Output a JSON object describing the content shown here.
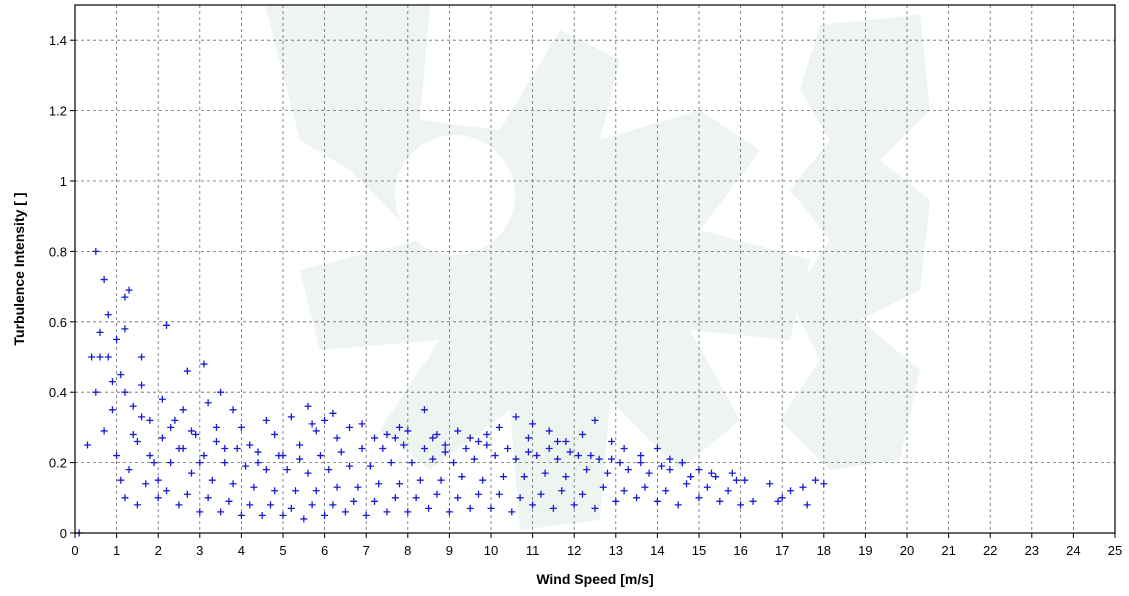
{
  "chart_data": {
    "type": "scatter",
    "xlabel": "Wind Speed [m/s]",
    "ylabel": "Turbulence Intensity [ ]",
    "xlim": [
      0,
      25
    ],
    "ylim": [
      0,
      1.5
    ],
    "x_ticks": [
      0,
      1,
      2,
      3,
      4,
      5,
      6,
      7,
      8,
      9,
      10,
      11,
      12,
      13,
      14,
      15,
      16,
      17,
      18,
      19,
      20,
      21,
      22,
      23,
      24,
      25
    ],
    "y_ticks": [
      0,
      0.2,
      0.4,
      0.6,
      0.8,
      1,
      1.2,
      1.4
    ],
    "y_tick_labels": [
      "0",
      "0.2",
      "0.4",
      "0.6",
      "0.8",
      "1",
      "1.2",
      "1.4"
    ],
    "grid": true,
    "marker": "+",
    "colors": {
      "marker": "#1a1ad6",
      "watermark": "#eef4ef"
    },
    "series": [
      {
        "points": [
          [
            0.4,
            0.5
          ],
          [
            0.5,
            0.8
          ],
          [
            0.6,
            0.5
          ],
          [
            0.7,
            0.72
          ],
          [
            0.8,
            0.5
          ],
          [
            0.8,
            0.62
          ],
          [
            1.0,
            0.55
          ],
          [
            1.2,
            0.58
          ],
          [
            1.2,
            0.67
          ],
          [
            1.3,
            0.69
          ],
          [
            0.3,
            0.25
          ],
          [
            0.5,
            0.4
          ],
          [
            0.7,
            0.29
          ],
          [
            0.9,
            0.43
          ],
          [
            1.1,
            0.45
          ],
          [
            1.6,
            0.5
          ],
          [
            2.2,
            0.59
          ],
          [
            2.7,
            0.46
          ],
          [
            3.1,
            0.48
          ],
          [
            3.5,
            0.4
          ],
          [
            0.6,
            0.57
          ],
          [
            0.9,
            0.35
          ],
          [
            1.0,
            0.22
          ],
          [
            1.1,
            0.15
          ],
          [
            1.2,
            0.4
          ],
          [
            1.4,
            0.36
          ],
          [
            1.5,
            0.26
          ],
          [
            1.6,
            0.42
          ],
          [
            1.8,
            0.32
          ],
          [
            1.9,
            0.2
          ],
          [
            2.0,
            0.15
          ],
          [
            2.1,
            0.38
          ],
          [
            2.3,
            0.3
          ],
          [
            2.5,
            0.24
          ],
          [
            2.6,
            0.35
          ],
          [
            2.8,
            0.29
          ],
          [
            3.0,
            0.2
          ],
          [
            3.2,
            0.37
          ],
          [
            3.4,
            0.3
          ],
          [
            3.6,
            0.24
          ],
          [
            3.8,
            0.35
          ],
          [
            4.0,
            0.3
          ],
          [
            4.2,
            0.25
          ],
          [
            4.4,
            0.2
          ],
          [
            4.6,
            0.32
          ],
          [
            4.8,
            0.28
          ],
          [
            5.0,
            0.22
          ],
          [
            5.2,
            0.33
          ],
          [
            5.4,
            0.25
          ],
          [
            5.6,
            0.36
          ],
          [
            5.8,
            0.29
          ],
          [
            6.0,
            0.32
          ],
          [
            6.3,
            0.27
          ],
          [
            6.6,
            0.3
          ],
          [
            6.9,
            0.31
          ],
          [
            7.2,
            0.27
          ],
          [
            7.5,
            0.28
          ],
          [
            7.8,
            0.3
          ],
          [
            8.0,
            0.29
          ],
          [
            8.4,
            0.35
          ],
          [
            8.6,
            0.27
          ],
          [
            8.9,
            0.25
          ],
          [
            9.2,
            0.29
          ],
          [
            9.5,
            0.27
          ],
          [
            9.9,
            0.28
          ],
          [
            10.2,
            0.3
          ],
          [
            10.6,
            0.33
          ],
          [
            11.0,
            0.31
          ],
          [
            11.4,
            0.29
          ],
          [
            11.8,
            0.26
          ],
          [
            12.2,
            0.28
          ],
          [
            12.5,
            0.32
          ],
          [
            12.9,
            0.26
          ],
          [
            13.2,
            0.24
          ],
          [
            13.6,
            0.22
          ],
          [
            14.0,
            0.24
          ],
          [
            14.3,
            0.21
          ],
          [
            14.6,
            0.2
          ],
          [
            15.0,
            0.18
          ],
          [
            15.4,
            0.16
          ],
          [
            15.8,
            0.17
          ],
          [
            16.1,
            0.15
          ],
          [
            16.7,
            0.14
          ],
          [
            17.0,
            0.1
          ],
          [
            17.2,
            0.12
          ],
          [
            17.5,
            0.13
          ],
          [
            17.8,
            0.15
          ],
          [
            18.0,
            0.14
          ],
          [
            17.6,
            0.08
          ],
          [
            16.9,
            0.09
          ],
          [
            1.2,
            0.1
          ],
          [
            1.5,
            0.08
          ],
          [
            2.0,
            0.1
          ],
          [
            2.5,
            0.08
          ],
          [
            3.0,
            0.06
          ],
          [
            3.5,
            0.06
          ],
          [
            4.0,
            0.05
          ],
          [
            4.5,
            0.05
          ],
          [
            5.0,
            0.05
          ],
          [
            5.5,
            0.04
          ],
          [
            6.0,
            0.05
          ],
          [
            6.5,
            0.06
          ],
          [
            7.0,
            0.05
          ],
          [
            7.5,
            0.06
          ],
          [
            8.0,
            0.06
          ],
          [
            8.5,
            0.07
          ],
          [
            9.0,
            0.06
          ],
          [
            9.5,
            0.07
          ],
          [
            10.0,
            0.07
          ],
          [
            10.5,
            0.06
          ],
          [
            11.0,
            0.08
          ],
          [
            11.5,
            0.07
          ],
          [
            12.0,
            0.08
          ],
          [
            12.5,
            0.07
          ],
          [
            13.0,
            0.09
          ],
          [
            13.5,
            0.1
          ],
          [
            14.0,
            0.09
          ],
          [
            14.5,
            0.08
          ],
          [
            15.0,
            0.1
          ],
          [
            15.5,
            0.09
          ],
          [
            16.0,
            0.08
          ],
          [
            16.3,
            0.09
          ],
          [
            0.1,
            0.0
          ],
          [
            1.3,
            0.18
          ],
          [
            1.7,
            0.14
          ],
          [
            2.2,
            0.12
          ],
          [
            2.7,
            0.11
          ],
          [
            3.2,
            0.1
          ],
          [
            3.7,
            0.09
          ],
          [
            4.2,
            0.08
          ],
          [
            4.7,
            0.08
          ],
          [
            5.2,
            0.07
          ],
          [
            5.7,
            0.08
          ],
          [
            6.2,
            0.08
          ],
          [
            6.7,
            0.09
          ],
          [
            7.2,
            0.09
          ],
          [
            7.7,
            0.1
          ],
          [
            8.2,
            0.1
          ],
          [
            8.7,
            0.11
          ],
          [
            9.2,
            0.1
          ],
          [
            9.7,
            0.11
          ],
          [
            10.2,
            0.11
          ],
          [
            10.7,
            0.1
          ],
          [
            11.2,
            0.11
          ],
          [
            11.7,
            0.12
          ],
          [
            12.2,
            0.11
          ],
          [
            12.7,
            0.13
          ],
          [
            13.2,
            0.12
          ],
          [
            13.7,
            0.13
          ],
          [
            14.2,
            0.12
          ],
          [
            14.7,
            0.14
          ],
          [
            15.2,
            0.13
          ],
          [
            15.7,
            0.12
          ],
          [
            1.4,
            0.28
          ],
          [
            1.8,
            0.22
          ],
          [
            2.3,
            0.2
          ],
          [
            2.8,
            0.17
          ],
          [
            3.3,
            0.15
          ],
          [
            3.8,
            0.14
          ],
          [
            4.3,
            0.13
          ],
          [
            4.8,
            0.12
          ],
          [
            5.3,
            0.12
          ],
          [
            5.8,
            0.12
          ],
          [
            6.3,
            0.13
          ],
          [
            6.8,
            0.13
          ],
          [
            7.3,
            0.14
          ],
          [
            7.8,
            0.14
          ],
          [
            8.3,
            0.15
          ],
          [
            8.8,
            0.15
          ],
          [
            9.3,
            0.16
          ],
          [
            9.8,
            0.15
          ],
          [
            10.3,
            0.16
          ],
          [
            10.8,
            0.16
          ],
          [
            11.3,
            0.17
          ],
          [
            11.8,
            0.16
          ],
          [
            12.3,
            0.18
          ],
          [
            12.8,
            0.17
          ],
          [
            13.3,
            0.18
          ],
          [
            13.8,
            0.17
          ],
          [
            14.3,
            0.18
          ],
          [
            14.8,
            0.16
          ],
          [
            15.3,
            0.17
          ],
          [
            15.9,
            0.15
          ],
          [
            1.6,
            0.33
          ],
          [
            2.1,
            0.27
          ],
          [
            2.6,
            0.24
          ],
          [
            3.1,
            0.22
          ],
          [
            3.6,
            0.2
          ],
          [
            4.1,
            0.19
          ],
          [
            4.6,
            0.18
          ],
          [
            5.1,
            0.18
          ],
          [
            5.6,
            0.17
          ],
          [
            6.1,
            0.18
          ],
          [
            6.6,
            0.19
          ],
          [
            7.1,
            0.19
          ],
          [
            7.6,
            0.2
          ],
          [
            8.1,
            0.2
          ],
          [
            8.6,
            0.21
          ],
          [
            9.1,
            0.2
          ],
          [
            9.6,
            0.21
          ],
          [
            10.1,
            0.22
          ],
          [
            10.6,
            0.21
          ],
          [
            11.1,
            0.22
          ],
          [
            11.6,
            0.21
          ],
          [
            12.1,
            0.22
          ],
          [
            12.6,
            0.21
          ],
          [
            13.1,
            0.2
          ],
          [
            13.6,
            0.2
          ],
          [
            14.1,
            0.19
          ],
          [
            14.6,
            0.2
          ],
          [
            3.9,
            0.24
          ],
          [
            4.4,
            0.23
          ],
          [
            4.9,
            0.22
          ],
          [
            5.4,
            0.21
          ],
          [
            5.9,
            0.22
          ],
          [
            6.4,
            0.23
          ],
          [
            6.9,
            0.24
          ],
          [
            7.4,
            0.24
          ],
          [
            7.9,
            0.25
          ],
          [
            8.4,
            0.24
          ],
          [
            8.9,
            0.23
          ],
          [
            9.4,
            0.24
          ],
          [
            9.9,
            0.25
          ],
          [
            10.4,
            0.24
          ],
          [
            10.9,
            0.23
          ],
          [
            11.4,
            0.24
          ],
          [
            11.9,
            0.23
          ],
          [
            12.4,
            0.22
          ],
          [
            12.9,
            0.21
          ],
          [
            2.4,
            0.32
          ],
          [
            2.9,
            0.28
          ],
          [
            3.4,
            0.26
          ],
          [
            6.2,
            0.34
          ],
          [
            5.7,
            0.31
          ],
          [
            7.7,
            0.27
          ],
          [
            8.7,
            0.28
          ],
          [
            9.7,
            0.26
          ],
          [
            10.9,
            0.27
          ],
          [
            11.6,
            0.26
          ]
        ]
      }
    ]
  }
}
